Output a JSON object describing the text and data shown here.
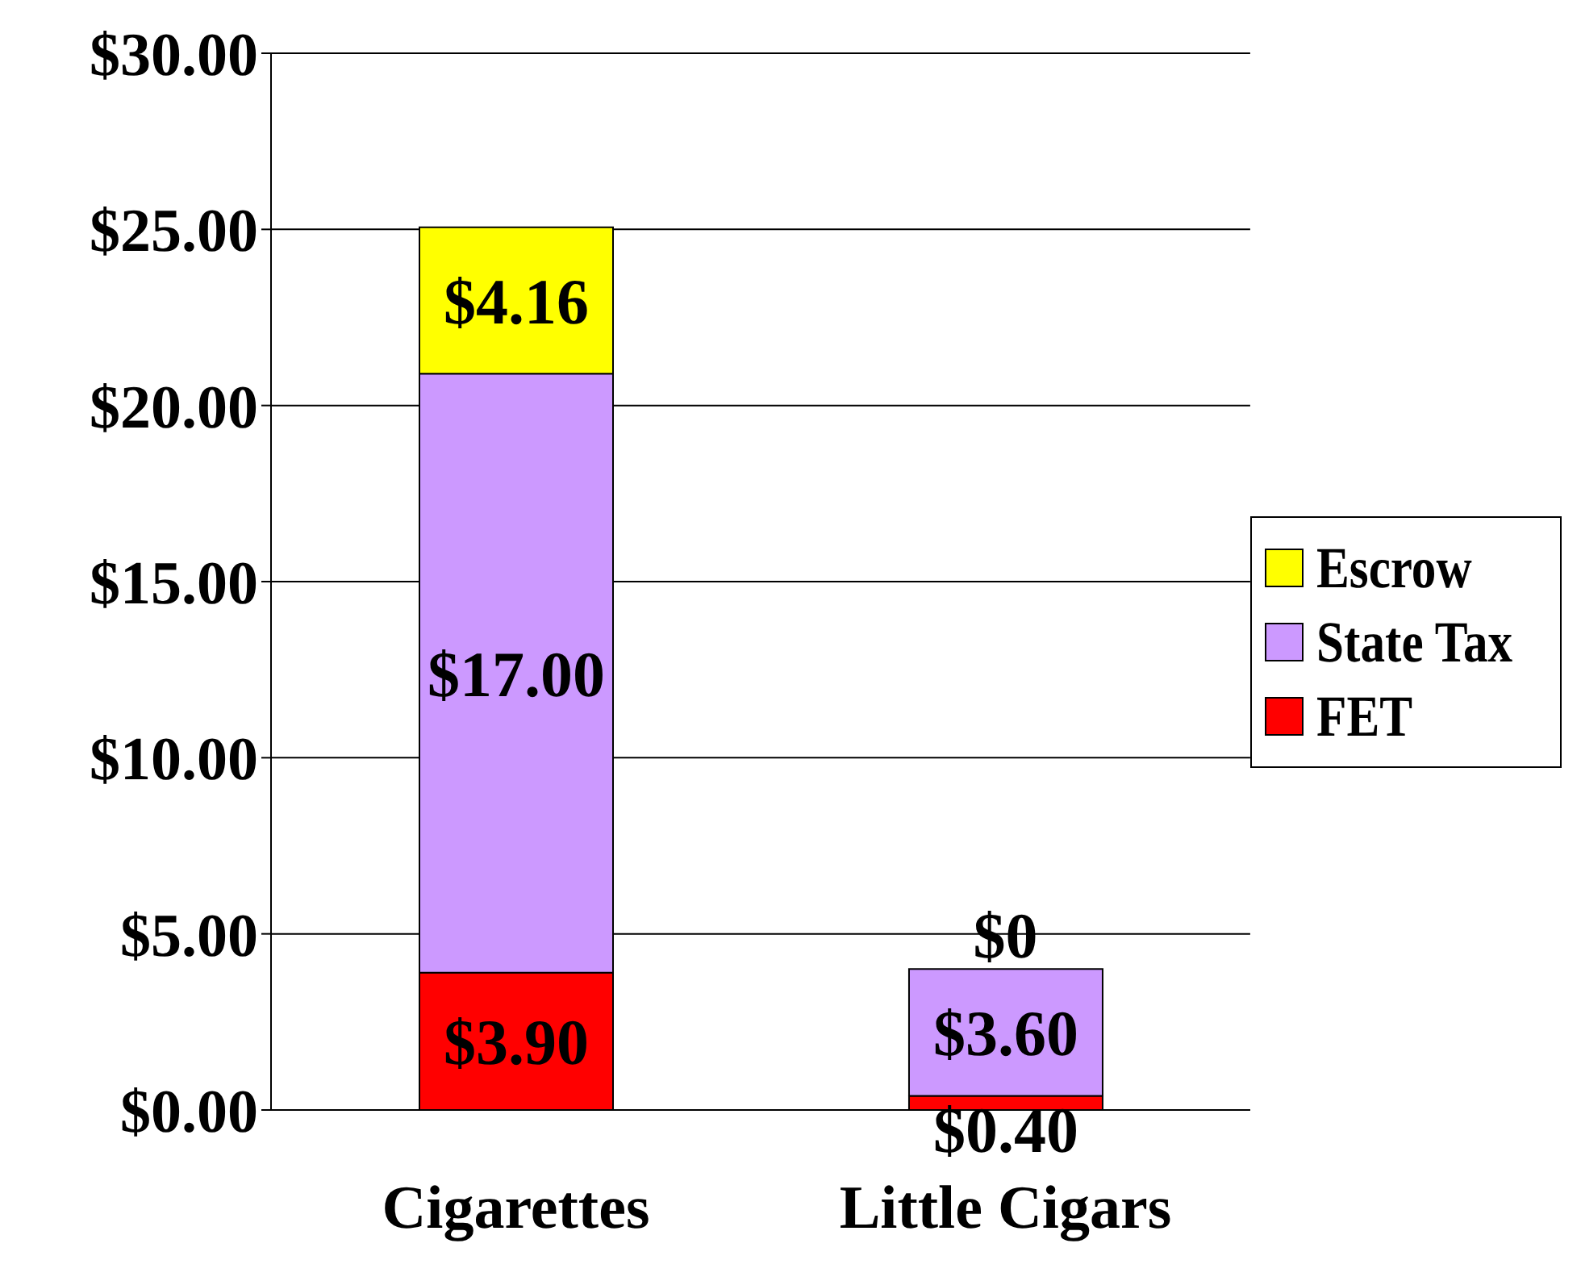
{
  "chart_data": {
    "type": "bar",
    "stacked": true,
    "categories": [
      "Cigarettes",
      "Little Cigars"
    ],
    "series": [
      {
        "name": "FET",
        "color": "#ff0000",
        "values": [
          3.9,
          0.4
        ],
        "value_labels": [
          "$3.90",
          "$0.40"
        ]
      },
      {
        "name": "State Tax",
        "color": "#cc99ff",
        "values": [
          17,
          3.6
        ],
        "value_labels": [
          "$17.00",
          "$3.60"
        ]
      },
      {
        "name": "Escrow",
        "color": "#ffff00",
        "values": [
          4.16,
          0
        ],
        "value_labels": [
          "$4.16",
          "$0"
        ]
      }
    ],
    "ylim": [
      0,
      30
    ],
    "yticks": [
      {
        "value": 0,
        "label": "$0.00"
      },
      {
        "value": 5,
        "label": "$5.00"
      },
      {
        "value": 10,
        "label": "$10.00"
      },
      {
        "value": 15,
        "label": "$15.00"
      },
      {
        "value": 20,
        "label": "$20.00"
      },
      {
        "value": 25,
        "label": "$25.00"
      },
      {
        "value": 30,
        "label": "$30.00"
      }
    ],
    "grid": "y",
    "legend": "right"
  }
}
